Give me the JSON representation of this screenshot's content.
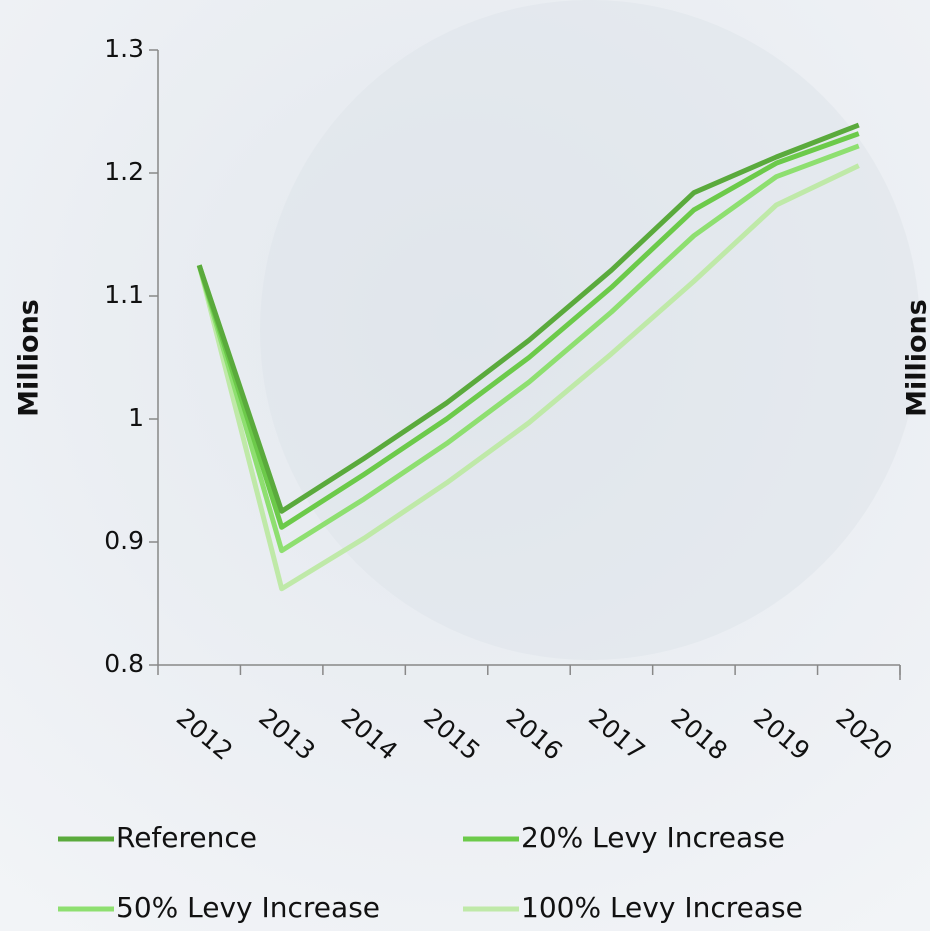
{
  "chart_data": {
    "type": "line",
    "y_label": "Millions",
    "clipped_label": "Millions",
    "categories": [
      "2012",
      "2013",
      "2014",
      "2015",
      "2016",
      "2017",
      "2018",
      "2019",
      "2020"
    ],
    "series": [
      {
        "name": "Reference",
        "color": "#5aaa3c",
        "values": [
          1.125,
          0.925,
          0.968,
          1.013,
          1.064,
          1.121,
          1.184,
          1.213,
          1.239
        ]
      },
      {
        "name": "20% Levy Increase",
        "color": "#6cca4a",
        "values": [
          1.125,
          0.912,
          0.955,
          1.0,
          1.05,
          1.107,
          1.17,
          1.208,
          1.232
        ]
      },
      {
        "name": "50% Levy Increase",
        "color": "#8edf70",
        "values": [
          1.125,
          0.893,
          0.935,
          0.98,
          1.03,
          1.087,
          1.149,
          1.197,
          1.222
        ]
      },
      {
        "name": "100% Levy Increase",
        "color": "#bfe9a8",
        "values": [
          1.125,
          0.862,
          0.903,
          0.948,
          0.997,
          1.053,
          1.112,
          1.174,
          1.206
        ]
      }
    ],
    "ylim": [
      0.8,
      1.3
    ],
    "yticks": [
      0.8,
      0.9,
      1,
      1.1,
      1.2,
      1.3
    ],
    "grid": false
  }
}
